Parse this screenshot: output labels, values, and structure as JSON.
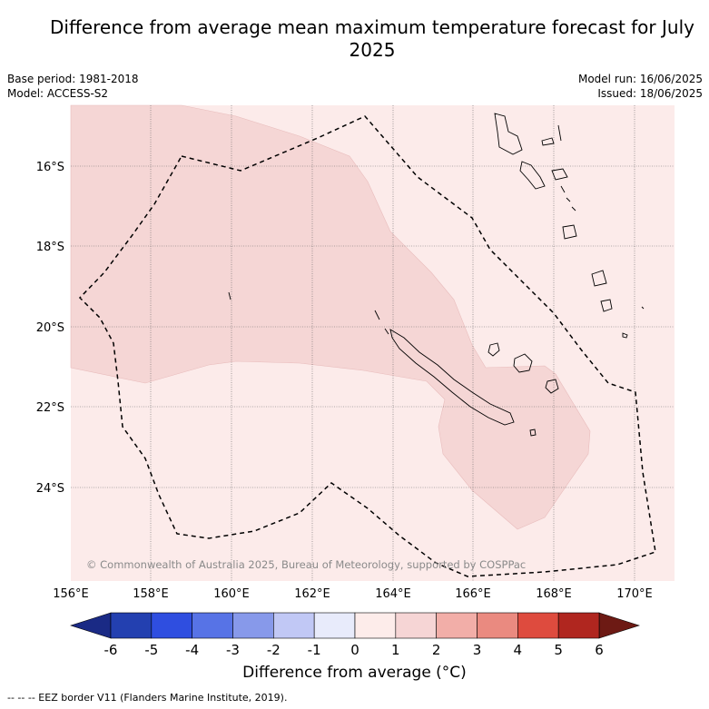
{
  "title": "Difference from average mean maximum temperature forecast for July 2025",
  "meta_left": {
    "base_period": "Base period: 1981-2018",
    "model": "Model: ACCESS-S2"
  },
  "meta_right": {
    "model_run": "Model run: 16/06/2025",
    "issued": "Issued: 18/06/2025"
  },
  "copyright": "© Commonwealth of Australia 2025, Bureau of Meteorology, supported by COSPPac",
  "lat_labels": [
    "16°S",
    "18°S",
    "20°S",
    "22°S",
    "24°S"
  ],
  "lon_labels": [
    "156°E",
    "158°E",
    "160°E",
    "162°E",
    "164°E",
    "166°E",
    "168°E",
    "170°E"
  ],
  "colorbar": {
    "title": "Difference from average (°C)",
    "ticks": [
      "-6",
      "-5",
      "-4",
      "-3",
      "-2",
      "-1",
      "0",
      "1",
      "2",
      "3",
      "4",
      "5",
      "6"
    ],
    "colors": [
      "#2340b0",
      "#2f4ee0",
      "#5773e6",
      "#8799ea",
      "#c1c8f5",
      "#e8ebfb",
      "#fdecea",
      "#f6d5d5",
      "#f2aea8",
      "#ea8a80",
      "#de4b3e",
      "#b0261f"
    ],
    "under_color": "#1a2a85",
    "over_color": "#6d1a14"
  },
  "footnote": "--  --  -- EEZ border V11 (Flanders Marine Institute, 2019)."
}
